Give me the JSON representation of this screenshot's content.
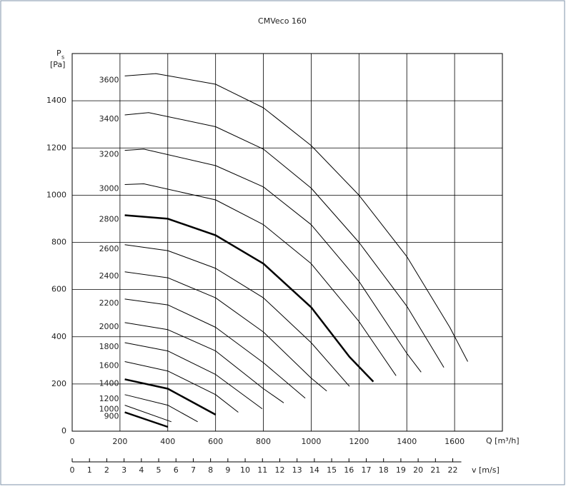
{
  "chart_data": {
    "type": "line",
    "title": "CMVeco 160",
    "y_label": "P",
    "y_label_sub": "s",
    "y_unit": "[Pa]",
    "x_label": "Q [m³/h]",
    "x2_label": "v [m/s]",
    "xlim": [
      0,
      1800
    ],
    "xticks": [
      0,
      200,
      400,
      600,
      800,
      1000,
      1200,
      1400,
      1600
    ],
    "x2lim": [
      0,
      24.87
    ],
    "x2ticks": [
      0,
      1,
      2,
      3,
      4,
      5,
      6,
      7,
      8,
      9,
      10,
      11,
      12,
      13,
      14,
      15,
      16,
      17,
      18,
      19,
      20,
      21,
      22
    ],
    "ylim": [
      0,
      1600
    ],
    "yticks": [
      0,
      200,
      400,
      600,
      800,
      1000,
      1200,
      1400
    ],
    "grid": true,
    "color": "#000000",
    "series": [
      {
        "name": "3600",
        "width": 1,
        "x": [
          220,
          350,
          600,
          800,
          1000,
          1200,
          1400,
          1580,
          1655
        ],
        "values": [
          1505,
          1515,
          1470,
          1370,
          1210,
          1000,
          740,
          440,
          295
        ]
      },
      {
        "name": "3400",
        "width": 1,
        "x": [
          220,
          320,
          600,
          800,
          1000,
          1200,
          1400,
          1555
        ],
        "values": [
          1340,
          1350,
          1290,
          1195,
          1030,
          800,
          530,
          270
        ]
      },
      {
        "name": "3200",
        "width": 1,
        "x": [
          220,
          300,
          600,
          800,
          1000,
          1200,
          1400,
          1460
        ],
        "values": [
          1190,
          1195,
          1125,
          1035,
          875,
          635,
          330,
          250
        ]
      },
      {
        "name": "3000",
        "width": 1,
        "x": [
          220,
          300,
          600,
          800,
          1000,
          1200,
          1355
        ],
        "values": [
          1045,
          1048,
          980,
          875,
          710,
          465,
          235
        ]
      },
      {
        "name": "2800",
        "width": 2.5,
        "x": [
          220,
          400,
          600,
          800,
          1000,
          1160,
          1260
        ],
        "values": [
          915,
          900,
          830,
          710,
          525,
          315,
          210
        ]
      },
      {
        "name": "2600",
        "width": 1,
        "x": [
          220,
          400,
          600,
          800,
          1000,
          1160
        ],
        "values": [
          790,
          765,
          690,
          565,
          375,
          190
        ]
      },
      {
        "name": "2400",
        "width": 1,
        "x": [
          220,
          400,
          600,
          800,
          1000,
          1065
        ],
        "values": [
          675,
          650,
          565,
          420,
          225,
          170
        ]
      },
      {
        "name": "2200",
        "width": 1,
        "x": [
          220,
          400,
          600,
          800,
          975
        ],
        "values": [
          560,
          535,
          440,
          290,
          140
        ]
      },
      {
        "name": "2000",
        "width": 1,
        "x": [
          220,
          400,
          600,
          800,
          885
        ],
        "values": [
          460,
          430,
          340,
          180,
          120
        ]
      },
      {
        "name": "1800",
        "width": 1,
        "x": [
          220,
          400,
          600,
          795
        ],
        "values": [
          375,
          340,
          240,
          95
        ]
      },
      {
        "name": "1600",
        "width": 1,
        "x": [
          220,
          400,
          600,
          695
        ],
        "values": [
          295,
          255,
          155,
          80
        ]
      },
      {
        "name": "1400",
        "width": 2.5,
        "x": [
          220,
          400,
          600
        ],
        "values": [
          220,
          180,
          70
        ]
      },
      {
        "name": "1200",
        "width": 1,
        "x": [
          220,
          400,
          525
        ],
        "values": [
          155,
          110,
          40
        ]
      },
      {
        "name": "1000",
        "width": 1,
        "x": [
          220,
          415
        ],
        "values": [
          110,
          40
        ]
      },
      {
        "name": "900",
        "width": 2.5,
        "x": [
          220,
          400
        ],
        "values": [
          80,
          18
        ]
      }
    ]
  }
}
